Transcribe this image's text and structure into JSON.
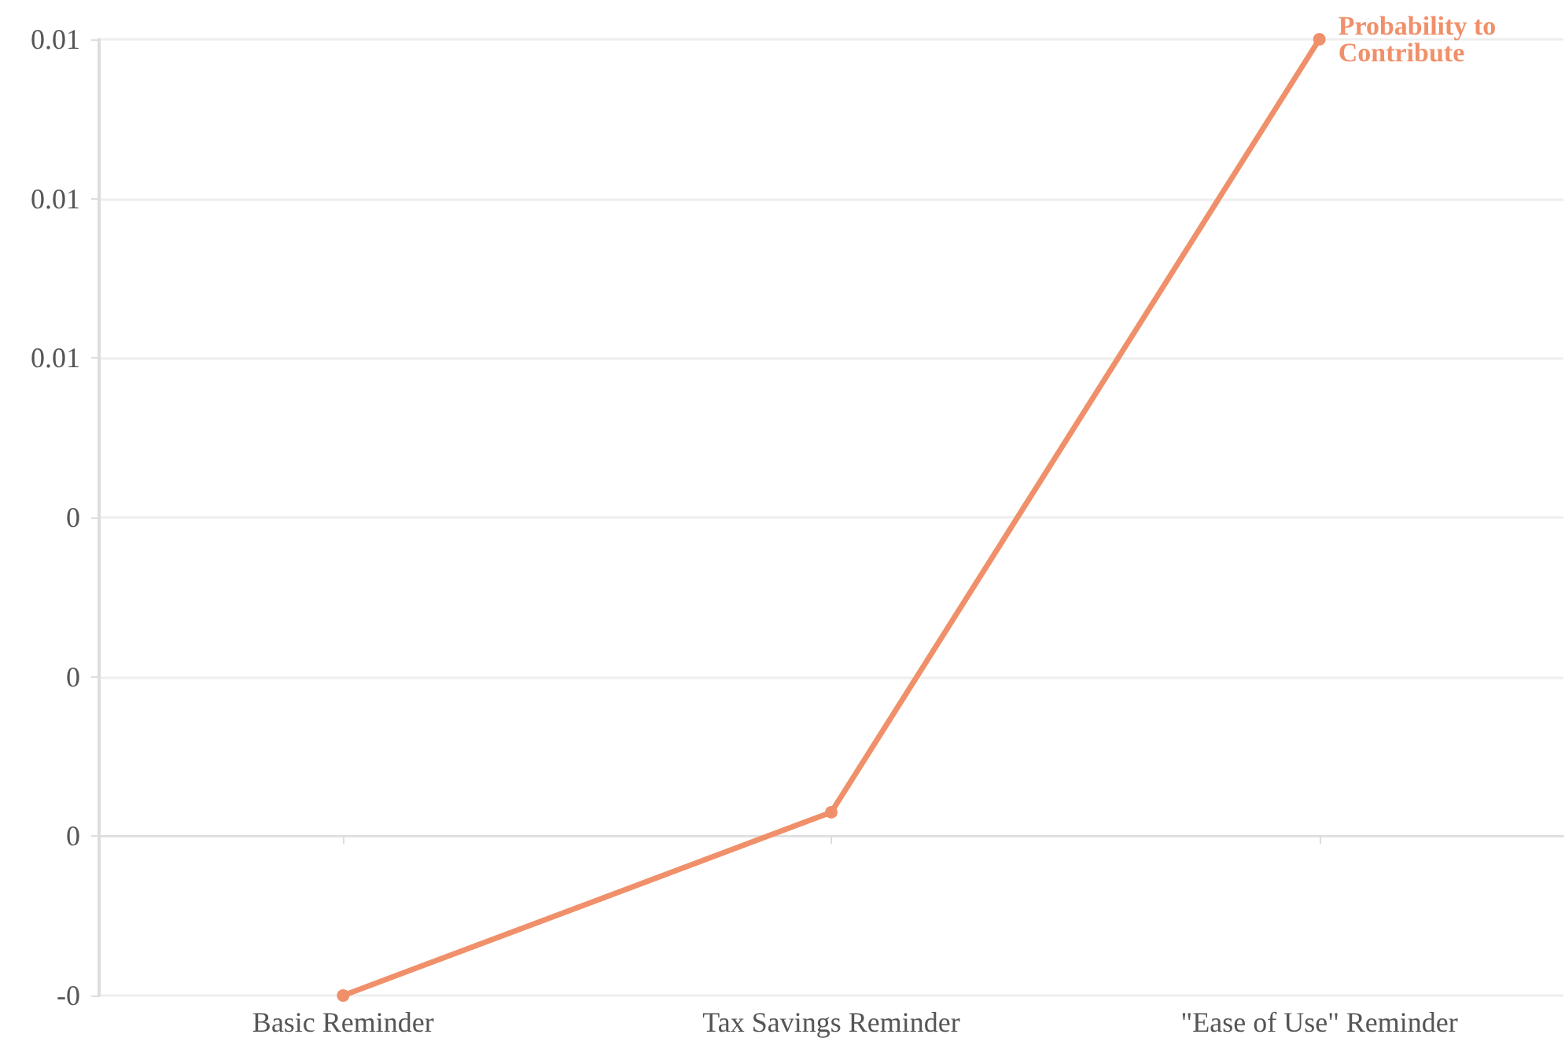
{
  "chart_data": {
    "type": "line",
    "categories": [
      "Basic Reminder",
      "Tax Savings Reminder",
      "\"Ease of Use\" Reminder"
    ],
    "series": [
      {
        "name": "Probability to Contribute",
        "color": "#f0906a",
        "values": [
          -0.002,
          0.0003,
          0.01
        ]
      }
    ],
    "ylim": [
      -0.002,
      0.01
    ],
    "yticks": [
      {
        "value": -0.002,
        "label": "-0"
      },
      {
        "value": 0,
        "label": "0"
      },
      {
        "value": 0.002,
        "label": "0"
      },
      {
        "value": 0.004,
        "label": "0"
      },
      {
        "value": 0.006,
        "label": "0.01"
      },
      {
        "value": 0.008,
        "label": "0.01"
      },
      {
        "value": 0.01,
        "label": "0.01"
      }
    ],
    "grid": "y",
    "marker": "circle",
    "line_style": "solid"
  }
}
